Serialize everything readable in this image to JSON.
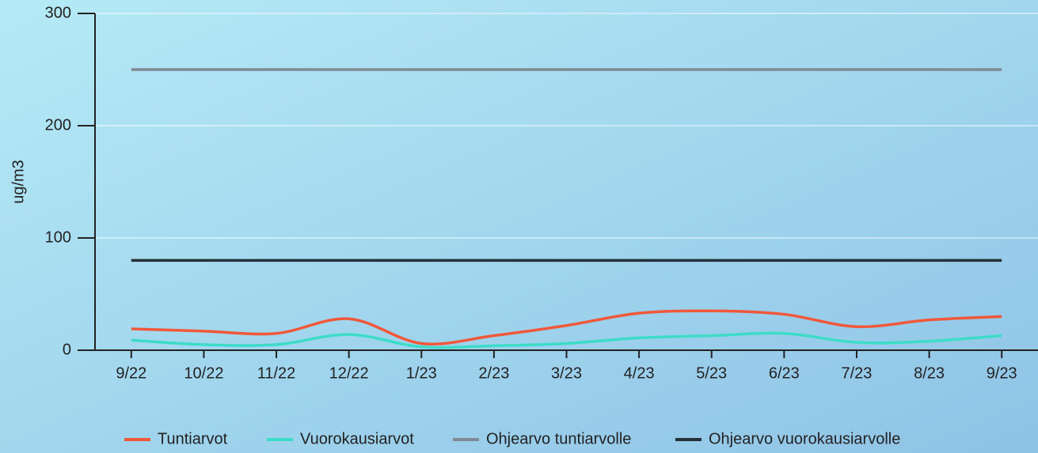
{
  "chart_data": {
    "type": "line",
    "y_label": "ug/m3",
    "categories": [
      "9/22",
      "10/22",
      "11/22",
      "12/22",
      "1/23",
      "2/23",
      "3/23",
      "4/23",
      "5/23",
      "6/23",
      "7/23",
      "8/23",
      "9/23"
    ],
    "series": [
      {
        "name": "Tuntiarvot",
        "color": "#f0583a",
        "values": [
          19,
          17,
          15,
          28,
          6,
          13,
          22,
          33,
          35,
          32,
          21,
          27,
          30
        ]
      },
      {
        "name": "Vuorokausiarvot",
        "color": "#3ddcc8",
        "values": [
          9,
          5,
          5,
          14,
          3,
          4,
          6,
          11,
          13,
          15,
          7,
          8,
          13
        ]
      },
      {
        "name": "Ohjearvo tuntiarvolle",
        "color": "#7f8a94",
        "values": [
          250,
          250,
          250,
          250,
          250,
          250,
          250,
          250,
          250,
          250,
          250,
          250,
          250
        ]
      },
      {
        "name": "Ohjearvo vuorokausiarvolle",
        "color": "#26303a",
        "values": [
          80,
          80,
          80,
          80,
          80,
          80,
          80,
          80,
          80,
          80,
          80,
          80,
          80
        ]
      }
    ],
    "ylim": [
      0,
      300
    ],
    "yticks": [
      0,
      100,
      200,
      300
    ],
    "grid": true,
    "legend": "bottom"
  }
}
